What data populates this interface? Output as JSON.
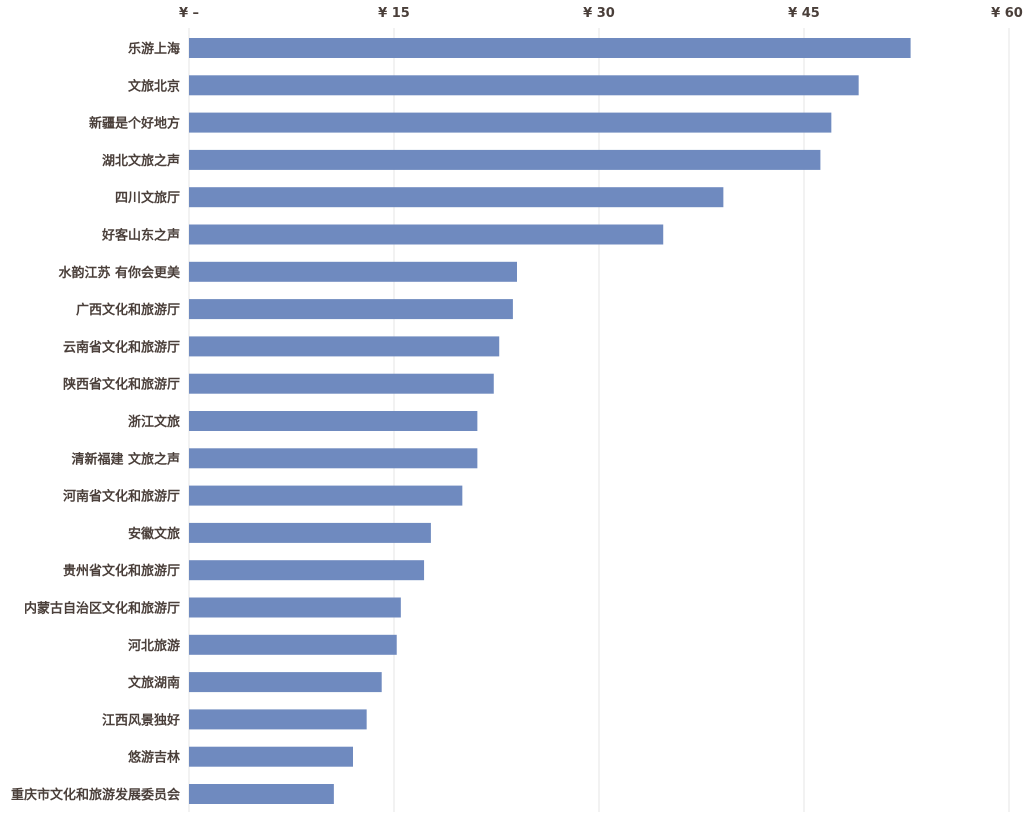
{
  "chart_data": {
    "type": "bar",
    "orientation": "horizontal",
    "title": "",
    "xlabel": "",
    "ylabel": "",
    "xlim": [
      0,
      60
    ],
    "ticks": [
      0,
      15,
      30,
      45,
      60
    ],
    "tick_labels": [
      "¥ –",
      "¥ 15",
      "¥ 30",
      "¥ 45",
      "¥ 60"
    ],
    "axis_position": "top",
    "grid": true,
    "legend": "none",
    "bar_color": "#6f8abf",
    "grid_color": "#e6e6e6",
    "label_color": "#4a3f3a",
    "categories": [
      "乐游上海",
      "文旅北京",
      "新疆是个好地方",
      "湖北文旅之声",
      "四川文旅厅",
      "好客山东之声",
      "水韵江苏 有你会更美",
      "广西文化和旅游厅",
      "云南省文化和旅游厅",
      "陕西省文化和旅游厅",
      "浙江文旅",
      "清新福建 文旅之声",
      "河南省文化和旅游厅",
      "安徽文旅",
      "贵州省文化和旅游厅",
      "内蒙古自治区文化和旅游厅",
      "河北旅游",
      "文旅湖南",
      "江西风景独好",
      "悠游吉林",
      "重庆市文化和旅游发展委员会"
    ],
    "values": [
      52.8,
      49.0,
      47.0,
      46.2,
      39.1,
      34.7,
      24.0,
      23.7,
      22.7,
      22.3,
      21.1,
      21.1,
      20.0,
      17.7,
      17.2,
      15.5,
      15.2,
      14.1,
      13.0,
      12.0,
      10.6
    ]
  }
}
